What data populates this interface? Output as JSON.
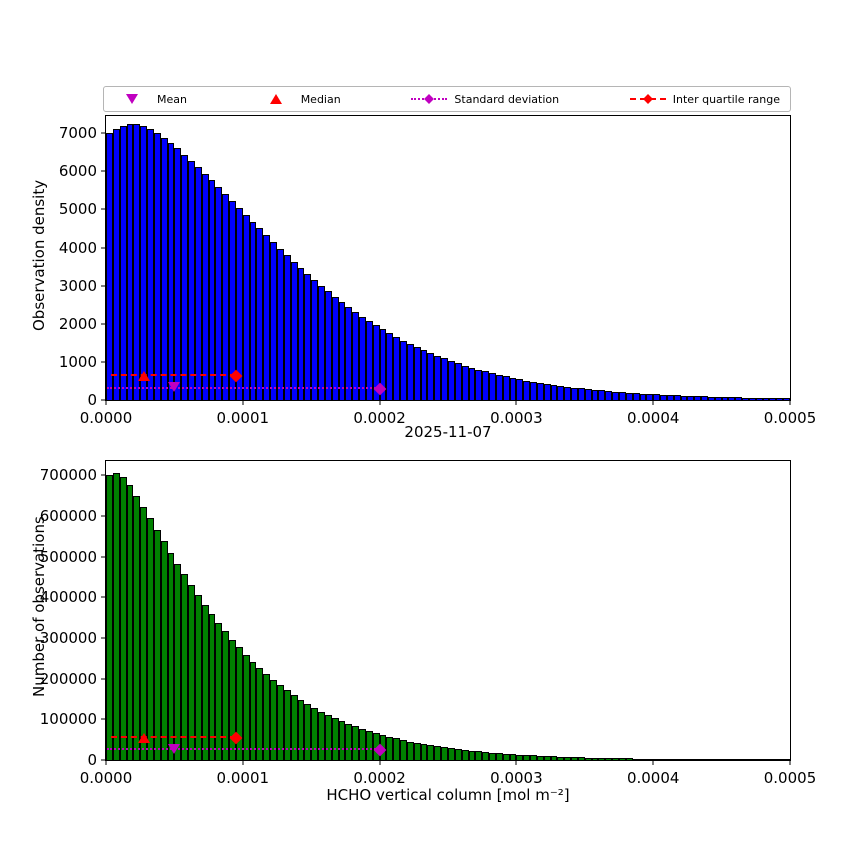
{
  "colors": {
    "red": "#ff0000",
    "magenta": "#c000c0",
    "blue": "#0000ff",
    "green": "#008000",
    "axis": "#000000",
    "legend_border": "#b5b5b5"
  },
  "legend": {
    "position": "top",
    "items": [
      {
        "label": "Mean",
        "marker": "triangle-down",
        "color": "#c000c0"
      },
      {
        "label": "Median",
        "marker": "triangle-up",
        "color": "#ff0000"
      },
      {
        "label": "Standard deviation",
        "marker": "diamond-dotted-line",
        "color": "#c000c0"
      },
      {
        "label": "Inter quartile range",
        "marker": "diamond-dashed-line",
        "color": "#ff0000"
      }
    ]
  },
  "titles": {
    "date_label": "2025-11-07",
    "xlabel": "HCHO vertical column [mol m⁻²]"
  },
  "chart_data": [
    {
      "type": "bar",
      "container": "density-plot-area",
      "ylabel": "Observation density",
      "bar_color_key": "blue",
      "bin_start": 0,
      "bin_width": 5e-06,
      "xlim": [
        0,
        0.0005
      ],
      "ylim": [
        0,
        7450
      ],
      "grid": false,
      "xticks": [
        {
          "value": 0,
          "label": "0.0000"
        },
        {
          "value": 0.0001,
          "label": "0.0001"
        },
        {
          "value": 0.0002,
          "label": "0.0002"
        },
        {
          "value": 0.0003,
          "label": "0.0003"
        },
        {
          "value": 0.0004,
          "label": "0.0004"
        },
        {
          "value": 0.0005,
          "label": "0.0005"
        }
      ],
      "yticks": [
        {
          "value": 0,
          "label": "0"
        },
        {
          "value": 1000,
          "label": "1000"
        },
        {
          "value": 2000,
          "label": "2000"
        },
        {
          "value": 3000,
          "label": "3000"
        },
        {
          "value": 4000,
          "label": "4000"
        },
        {
          "value": 5000,
          "label": "5000"
        },
        {
          "value": 6000,
          "label": "6000"
        },
        {
          "value": 7000,
          "label": "7000"
        }
      ],
      "values": [
        7000,
        7120,
        7200,
        7250,
        7230,
        7180,
        7100,
        7000,
        6880,
        6750,
        6600,
        6440,
        6280,
        6110,
        5940,
        5760,
        5580,
        5400,
        5220,
        5040,
        4860,
        4680,
        4500,
        4320,
        4140,
        3970,
        3800,
        3630,
        3470,
        3310,
        3150,
        3000,
        2850,
        2710,
        2570,
        2440,
        2310,
        2190,
        2070,
        1960,
        1850,
        1750,
        1650,
        1560,
        1470,
        1390,
        1310,
        1230,
        1160,
        1090,
        1020,
        960,
        900,
        850,
        800,
        750,
        700,
        660,
        620,
        580,
        545,
        510,
        480,
        450,
        420,
        395,
        370,
        345,
        325,
        305,
        285,
        268,
        250,
        235,
        220,
        206,
        193,
        181,
        170,
        159,
        149,
        140,
        131,
        123,
        115,
        108,
        101,
        95,
        89,
        83,
        78,
        73,
        68,
        64,
        60,
        56,
        53,
        49,
        46,
        43
      ],
      "stats": {
        "mean": {
          "x": 5e-05,
          "y": 330
        },
        "median": {
          "x": 2.8e-05,
          "y": 620
        },
        "iqr": {
          "x1": 4e-06,
          "x2": 9.5e-05,
          "y": 620
        },
        "std": {
          "x1": 1e-06,
          "x2": 0.0002,
          "y": 300
        }
      }
    },
    {
      "type": "bar",
      "container": "counts-plot-area",
      "ylabel": "Number of observations",
      "bar_color_key": "green",
      "bin_start": 0,
      "bin_width": 5e-06,
      "xlim": [
        0,
        0.0005
      ],
      "ylim": [
        0,
        735000
      ],
      "grid": false,
      "xticks": [
        {
          "value": 0,
          "label": "0.0000"
        },
        {
          "value": 0.0001,
          "label": "0.0001"
        },
        {
          "value": 0.0002,
          "label": "0.0002"
        },
        {
          "value": 0.0003,
          "label": "0.0003"
        },
        {
          "value": 0.0004,
          "label": "0.0004"
        },
        {
          "value": 0.0005,
          "label": "0.0005"
        }
      ],
      "yticks": [
        {
          "value": 0,
          "label": "0"
        },
        {
          "value": 100000,
          "label": "100000"
        },
        {
          "value": 200000,
          "label": "200000"
        },
        {
          "value": 300000,
          "label": "300000"
        },
        {
          "value": 400000,
          "label": "400000"
        },
        {
          "value": 500000,
          "label": "500000"
        },
        {
          "value": 600000,
          "label": "600000"
        },
        {
          "value": 700000,
          "label": "700000"
        }
      ],
      "values": [
        700000,
        705000,
        695000,
        675000,
        650000,
        622000,
        594000,
        566000,
        538000,
        510000,
        483000,
        457000,
        431000,
        406000,
        382000,
        359000,
        337000,
        316000,
        296000,
        277000,
        259000,
        242000,
        226000,
        211000,
        197000,
        184000,
        171000,
        159000,
        148000,
        138000,
        128000,
        119000,
        111000,
        103000,
        96000,
        89000,
        83000,
        77000,
        71500,
        66500,
        61500,
        57000,
        53000,
        49000,
        45500,
        42000,
        39000,
        36000,
        33500,
        31000,
        28500,
        26500,
        24500,
        22500,
        21000,
        19500,
        18000,
        16500,
        15300,
        14200,
        13100,
        12100,
        11200,
        10400,
        9600,
        8900,
        8200,
        7600,
        7000,
        6500,
        6000,
        5550,
        5150,
        4750,
        4400,
        4050,
        3750,
        3470,
        3200,
        2960,
        2740,
        2530,
        2340,
        2160,
        2000,
        1850,
        1710,
        1580,
        1460,
        1350,
        1250,
        1150,
        1060,
        980,
        910,
        840,
        780,
        720,
        660,
        610
      ],
      "stats": {
        "mean": {
          "x": 5e-05,
          "y": 27000
        },
        "median": {
          "x": 2.8e-05,
          "y": 55000
        },
        "iqr": {
          "x1": 4e-06,
          "x2": 9.5e-05,
          "y": 55000
        },
        "std": {
          "x1": 1e-06,
          "x2": 0.0002,
          "y": 25000
        }
      }
    }
  ]
}
